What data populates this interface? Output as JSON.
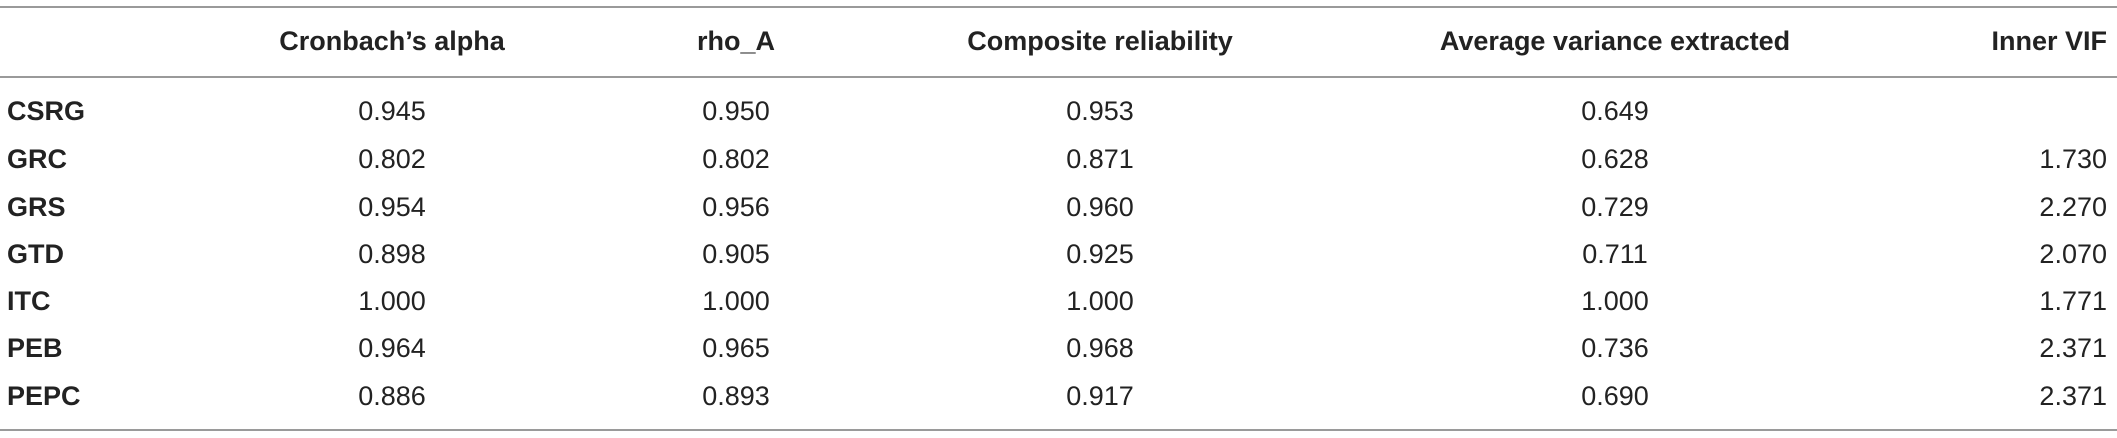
{
  "table": {
    "columns": [
      "Cronbach’s alpha",
      "rho_A",
      "Composite reliability",
      "Average variance extracted",
      "Inner VIF"
    ],
    "rows": [
      [
        "CSRG",
        "0.945",
        "0.950",
        "0.953",
        "0.649",
        null
      ],
      [
        "GRC",
        "0.802",
        "0.802",
        "0.871",
        "0.628",
        "1.730"
      ],
      [
        "GRS",
        "0.954",
        "0.956",
        "0.960",
        "0.729",
        "2.270"
      ],
      [
        "GTD",
        "0.898",
        "0.905",
        "0.925",
        "0.711",
        "2.070"
      ],
      [
        "ITC",
        "1.000",
        "1.000",
        "1.000",
        "1.000",
        "1.771"
      ],
      [
        "PEB",
        "0.964",
        "0.965",
        "0.968",
        "0.736",
        "2.371"
      ],
      [
        "PEPC",
        "0.886",
        "0.893",
        "0.917",
        "0.690",
        "2.371"
      ]
    ]
  }
}
